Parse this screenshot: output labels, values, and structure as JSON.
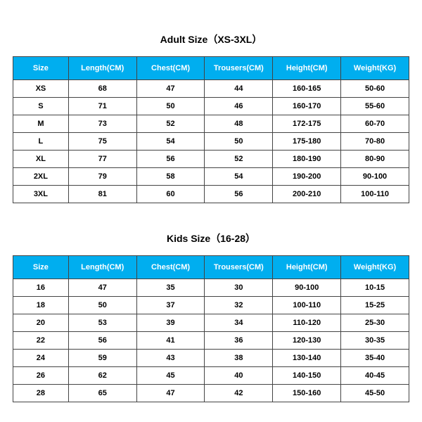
{
  "adult": {
    "title": "Adult Size（XS-3XL）",
    "columns": [
      "Size",
      "Length(CM)",
      "Chest(CM)",
      "Trousers(CM)",
      "Height(CM)",
      "Weight(KG)"
    ],
    "rows": [
      [
        "XS",
        "68",
        "47",
        "44",
        "160-165",
        "50-60"
      ],
      [
        "S",
        "71",
        "50",
        "46",
        "160-170",
        "55-60"
      ],
      [
        "M",
        "73",
        "52",
        "48",
        "172-175",
        "60-70"
      ],
      [
        "L",
        "75",
        "54",
        "50",
        "175-180",
        "70-80"
      ],
      [
        "XL",
        "77",
        "56",
        "52",
        "180-190",
        "80-90"
      ],
      [
        "2XL",
        "79",
        "58",
        "54",
        "190-200",
        "90-100"
      ],
      [
        "3XL",
        "81",
        "60",
        "56",
        "200-210",
        "100-110"
      ]
    ]
  },
  "kids": {
    "title": "Kids Size（16-28）",
    "columns": [
      "Size",
      "Length(CM)",
      "Chest(CM)",
      "Trousers(CM)",
      "Height(CM)",
      "Weight(KG)"
    ],
    "rows": [
      [
        "16",
        "47",
        "35",
        "30",
        "90-100",
        "10-15"
      ],
      [
        "18",
        "50",
        "37",
        "32",
        "100-110",
        "15-25"
      ],
      [
        "20",
        "53",
        "39",
        "34",
        "110-120",
        "25-30"
      ],
      [
        "22",
        "56",
        "41",
        "36",
        "120-130",
        "30-35"
      ],
      [
        "24",
        "59",
        "43",
        "38",
        "130-140",
        "35-40"
      ],
      [
        "26",
        "62",
        "45",
        "40",
        "140-150",
        "40-45"
      ],
      [
        "28",
        "65",
        "47",
        "42",
        "150-160",
        "45-50"
      ]
    ]
  },
  "style": {
    "header_bg": "#00aeef",
    "header_text": "#ffffff",
    "border_color": "#444444",
    "body_bg": "#ffffff",
    "title_fontsize": 14,
    "cell_fontsize": 11
  }
}
